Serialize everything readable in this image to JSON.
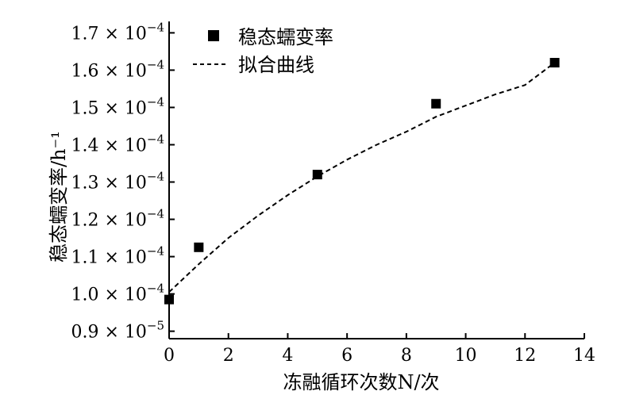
{
  "chart_data": {
    "type": "scatter",
    "title": "",
    "xlabel": "冻融循环次数N/次",
    "ylabel": "稳态蠕变率/h⁻¹",
    "xlim": [
      0,
      14
    ],
    "ylim": [
      8.8e-05,
      0.000172
    ],
    "x_ticks": [
      "0",
      "2",
      "4",
      "6",
      "8",
      "10",
      "12",
      "14"
    ],
    "x_tick_values": [
      0,
      2,
      4,
      6,
      8,
      10,
      12,
      14
    ],
    "y_ticks": [
      {
        "value": 9e-05,
        "mantissa": "0.9",
        "times": "×",
        "base": "10",
        "exp": "−5"
      },
      {
        "value": 0.0001,
        "mantissa": "1.0",
        "times": "×",
        "base": "10",
        "exp": "−4"
      },
      {
        "value": 0.00011,
        "mantissa": "1.1",
        "times": "×",
        "base": "10",
        "exp": "−4"
      },
      {
        "value": 0.00012,
        "mantissa": "1.2",
        "times": "×",
        "base": "10",
        "exp": "−4"
      },
      {
        "value": 0.00013,
        "mantissa": "1.3",
        "times": "×",
        "base": "10",
        "exp": "−4"
      },
      {
        "value": 0.00014,
        "mantissa": "1.4",
        "times": "×",
        "base": "10",
        "exp": "−4"
      },
      {
        "value": 0.00015,
        "mantissa": "1.5",
        "times": "×",
        "base": "10",
        "exp": "−4"
      },
      {
        "value": 0.00016,
        "mantissa": "1.6",
        "times": "×",
        "base": "10",
        "exp": "−4"
      },
      {
        "value": 0.00017,
        "mantissa": "1.7",
        "times": "×",
        "base": "10",
        "exp": "−4"
      }
    ],
    "series": [
      {
        "name": "稳态蠕变率",
        "kind": "scatter",
        "marker": "square",
        "x": [
          0,
          1,
          5,
          9,
          13
        ],
        "y": [
          9.85e-05,
          0.0001125,
          0.000132,
          0.000151,
          0.000162
        ]
      },
      {
        "name": "拟合曲线",
        "kind": "line",
        "style": "dashed",
        "x": [
          0,
          1,
          2,
          3,
          4,
          5,
          6,
          7,
          8,
          9,
          10,
          11,
          12,
          13
        ],
        "y": [
          0.0001005,
          0.000108,
          0.000115,
          0.000121,
          0.0001265,
          0.0001315,
          0.000136,
          0.00014,
          0.0001435,
          0.0001475,
          0.0001505,
          0.0001535,
          0.000156,
          0.000162
        ]
      }
    ],
    "legend_position": "top-left",
    "grid": false,
    "colors": {
      "marker": "#000000",
      "line": "#000000",
      "axis": "#000000"
    }
  }
}
